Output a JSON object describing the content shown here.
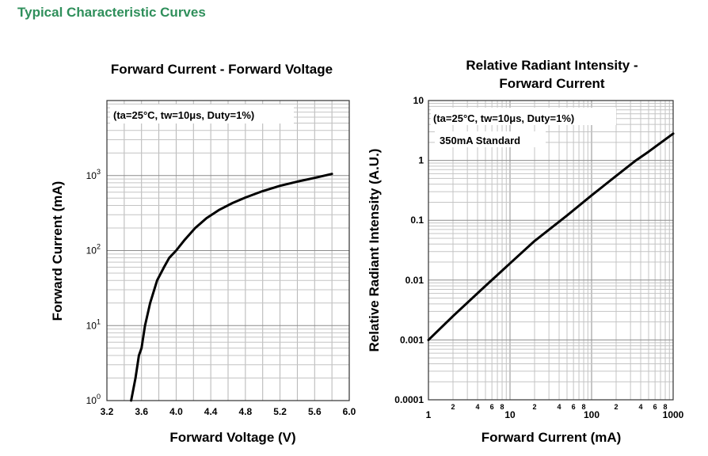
{
  "page": {
    "title": "Typical Characteristic Curves",
    "title_color": "#2f8f5b"
  },
  "chart_data": [
    {
      "type": "line",
      "title": "Forward Current - Forward Voltage",
      "xlabel": "Forward Voltage (V)",
      "ylabel": "Forward Current (mA)",
      "annotation": "(ta=25°C, tw=10μs, Duty=1%)",
      "xlim": [
        3.2,
        6.0
      ],
      "ylim": [
        1,
        10000
      ],
      "yscale": "log",
      "grid": true,
      "x_ticks": [
        "3.2",
        "3.6",
        "4.0",
        "4.4",
        "4.8",
        "5.2",
        "5.6",
        "6.0"
      ],
      "y_ticks": [
        {
          "base": "10",
          "exp": "0"
        },
        {
          "base": "10",
          "exp": "1"
        },
        {
          "base": "10",
          "exp": "2"
        },
        {
          "base": "10",
          "exp": "3"
        }
      ],
      "series": [
        {
          "color": "#000000",
          "x": [
            3.48,
            3.53,
            3.57,
            3.6,
            3.64,
            3.7,
            3.78,
            3.86,
            3.92,
            4.0,
            4.1,
            4.22,
            4.35,
            4.5,
            4.65,
            4.8,
            5.0,
            5.2,
            5.4,
            5.6,
            5.8
          ],
          "y": [
            1,
            2,
            4,
            5,
            10,
            20,
            40,
            60,
            80,
            100,
            140,
            200,
            270,
            350,
            430,
            510,
            620,
            730,
            830,
            930,
            1050
          ]
        }
      ]
    },
    {
      "type": "line",
      "title_lines": [
        "Relative Radiant Intensity -",
        "Forward Current"
      ],
      "xlabel": "Forward Current (mA)",
      "ylabel": "Relative Radiant Intensity (A.U.)",
      "annotation": "(ta=25°C, tw=10μs, Duty=1%)",
      "annotation2": "350mA Standard",
      "xlim": [
        1,
        1000
      ],
      "ylim": [
        0.0001,
        10
      ],
      "xscale": "log",
      "yscale": "log",
      "grid": true,
      "x_major_ticks": [
        "1",
        "10",
        "100",
        "1000"
      ],
      "x_minor_ticks": [
        "2",
        "4",
        "6",
        "8"
      ],
      "y_ticks": [
        "0.0001",
        "0.001",
        "0.01",
        "0.1",
        "1",
        "10"
      ],
      "series": [
        {
          "color": "#000000",
          "x": [
            1,
            2,
            5,
            10,
            20,
            50,
            100,
            200,
            350,
            500,
            1000
          ],
          "y": [
            0.001,
            0.0025,
            0.008,
            0.019,
            0.045,
            0.12,
            0.26,
            0.55,
            1.0,
            1.4,
            2.8
          ]
        }
      ]
    }
  ]
}
